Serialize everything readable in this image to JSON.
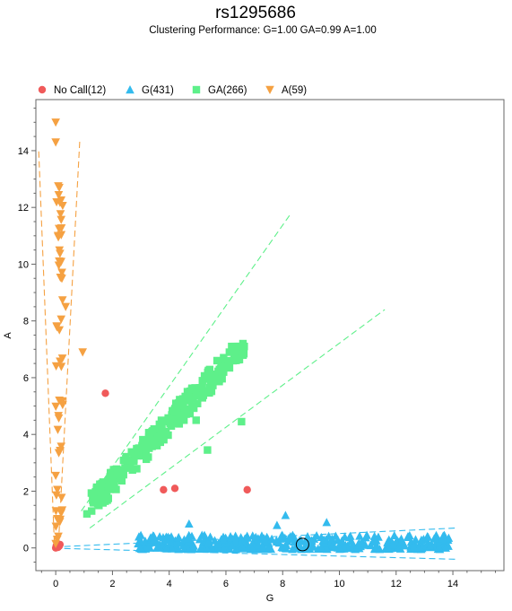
{
  "chart_data": {
    "type": "scatter",
    "title": "rs1295686",
    "subtitle": "Clustering Performance: G=1.00 GA=0.99 A=1.00",
    "xlabel": "G",
    "ylabel": "A",
    "xlim": [
      -0.7,
      15.8
    ],
    "ylim": [
      -0.8,
      15.8
    ],
    "xticks": [
      0,
      2,
      4,
      6,
      8,
      10,
      12,
      14
    ],
    "yticks": [
      0,
      2,
      4,
      6,
      8,
      10,
      12,
      14
    ],
    "grid": false,
    "legend_position": "top-left",
    "series": [
      {
        "name": "No Call(12)",
        "marker": "circle",
        "color": "#f05a5a",
        "points": [
          [
            1.75,
            5.45
          ],
          [
            3.8,
            2.05
          ],
          [
            4.2,
            2.1
          ],
          [
            6.75,
            2.05
          ],
          [
            0.1,
            0.1
          ],
          [
            0.05,
            0.05
          ],
          [
            0.0,
            0.0
          ],
          [
            0.15,
            0.12
          ],
          [
            0.02,
            0.08
          ],
          [
            0.08,
            0.02
          ],
          [
            0.12,
            0.06
          ],
          [
            0.04,
            0.1
          ]
        ]
      },
      {
        "name": "G(431)",
        "marker": "triangle-up",
        "color": "#33bbee",
        "cluster": {
          "x_range": [
            2.9,
            13.9
          ],
          "y_range": [
            -0.05,
            0.45
          ]
        },
        "points": [
          [
            4.7,
            0.85
          ],
          [
            7.8,
            0.8
          ],
          [
            8.1,
            1.15
          ],
          [
            9.55,
            0.9
          ],
          [
            13.75,
            0.0
          ],
          [
            13.2,
            0.05
          ],
          [
            12.8,
            0.0
          ],
          [
            12.3,
            0.08
          ],
          [
            11.9,
            0.12
          ]
        ]
      },
      {
        "name": "GA(266)",
        "marker": "square",
        "color": "#5ef08a",
        "cluster": {
          "x_range": [
            1.1,
            6.8
          ],
          "y_range": [
            1.2,
            7.2
          ]
        },
        "points": [
          [
            1.1,
            1.2
          ],
          [
            1.8,
            1.8
          ],
          [
            6.6,
            7.2
          ],
          [
            6.45,
            6.65
          ],
          [
            5.35,
            3.45
          ],
          [
            6.55,
            4.45
          ],
          [
            4.95,
            4.5
          ]
        ]
      },
      {
        "name": "A(59)",
        "marker": "triangle-down",
        "color": "#f5a142",
        "cluster": {
          "x_range": [
            0.0,
            0.25
          ],
          "y_range": [
            0.1,
            12.8
          ]
        },
        "points": [
          [
            0.0,
            15.0
          ],
          [
            0.0,
            14.3
          ],
          [
            0.95,
            6.9
          ],
          [
            0.35,
            8.5
          ],
          [
            0.0,
            2.55
          ],
          [
            0.0,
            0.15
          ],
          [
            0.05,
            0.3
          ]
        ]
      }
    ],
    "cluster_bounds": [
      {
        "series": "GA(266)",
        "color": "#5ef08a",
        "lines": [
          [
            [
              0.9,
              1.3
            ],
            [
              8.3,
              11.8
            ]
          ],
          [
            [
              1.2,
              0.7
            ],
            [
              11.6,
              8.4
            ]
          ]
        ]
      },
      {
        "series": "A(59)",
        "color": "#f5a142",
        "lines": [
          [
            [
              0.1,
              0.2
            ],
            [
              0.85,
              14.4
            ]
          ],
          [
            [
              -0.05,
              0.2
            ],
            [
              -0.6,
              14.0
            ]
          ]
        ]
      },
      {
        "series": "G(431)",
        "color": "#33bbee",
        "lines": [
          [
            [
              0.3,
              0.05
            ],
            [
              14.1,
              0.7
            ]
          ],
          [
            [
              0.3,
              -0.02
            ],
            [
              14.1,
              -0.4
            ]
          ]
        ]
      }
    ],
    "highlighted_point": [
      8.7,
      0.12
    ]
  }
}
